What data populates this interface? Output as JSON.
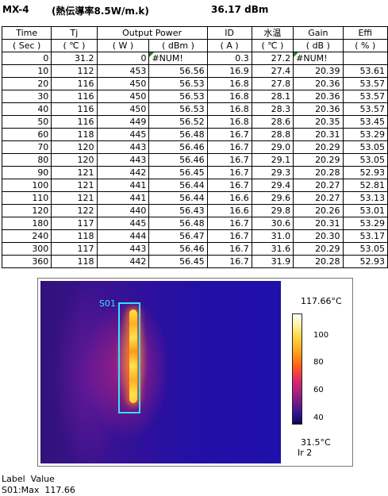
{
  "title": {
    "model": "MX-4",
    "condition": "(熱伝導率8.5W/m.k)",
    "power": "36.17 dBm"
  },
  "table": {
    "headers": [
      "Time",
      "Tj",
      "Output Power",
      "",
      "ID",
      "水温",
      "Gain",
      "Effi"
    ],
    "units": [
      "( Sec )",
      "( ℃ )",
      "( W )",
      "( dBm )",
      "( A )",
      "( ℃ )",
      "( dB )",
      "( % )"
    ],
    "rows": [
      [
        "0",
        "31.2",
        "0",
        "#NUM!",
        "0.3",
        "27.2",
        "#NUM!",
        ""
      ],
      [
        "10",
        "112",
        "453",
        "56.56",
        "16.9",
        "27.4",
        "20.39",
        "53.61"
      ],
      [
        "20",
        "116",
        "450",
        "56.53",
        "16.8",
        "27.8",
        "20.36",
        "53.57"
      ],
      [
        "30",
        "116",
        "450",
        "56.53",
        "16.8",
        "28.1",
        "20.36",
        "53.57"
      ],
      [
        "40",
        "116",
        "450",
        "56.53",
        "16.8",
        "28.3",
        "20.36",
        "53.57"
      ],
      [
        "50",
        "116",
        "449",
        "56.52",
        "16.8",
        "28.6",
        "20.35",
        "53.45"
      ],
      [
        "60",
        "118",
        "445",
        "56.48",
        "16.7",
        "28.8",
        "20.31",
        "53.29"
      ],
      [
        "70",
        "120",
        "443",
        "56.46",
        "16.7",
        "29.0",
        "20.29",
        "53.05"
      ],
      [
        "80",
        "120",
        "443",
        "56.46",
        "16.7",
        "29.1",
        "20.29",
        "53.05"
      ],
      [
        "90",
        "121",
        "442",
        "56.45",
        "16.7",
        "29.3",
        "20.28",
        "52.93"
      ],
      [
        "100",
        "121",
        "441",
        "56.44",
        "16.7",
        "29.4",
        "20.27",
        "52.81"
      ],
      [
        "110",
        "121",
        "441",
        "56.44",
        "16.6",
        "29.6",
        "20.27",
        "53.13"
      ],
      [
        "120",
        "122",
        "440",
        "56.43",
        "16.6",
        "29.8",
        "20.26",
        "53.01"
      ],
      [
        "180",
        "117",
        "445",
        "56.48",
        "16.7",
        "30.6",
        "20.31",
        "53.29"
      ],
      [
        "240",
        "118",
        "444",
        "56.47",
        "16.7",
        "31.0",
        "20.30",
        "53.17"
      ],
      [
        "300",
        "117",
        "443",
        "56.46",
        "16.7",
        "31.6",
        "20.29",
        "53.05"
      ],
      [
        "360",
        "118",
        "442",
        "56.45",
        "16.7",
        "31.9",
        "20.28",
        "52.93"
      ]
    ]
  },
  "thermal": {
    "roi_label": "S01",
    "scale_max": "117.66°C",
    "scale_min": "31.5°C",
    "ticks": [
      "100",
      "80",
      "60",
      "40"
    ],
    "ir_label": "Ir 2"
  },
  "bottom": {
    "header": "Label  Value",
    "value": "S01:Max  117.66"
  }
}
